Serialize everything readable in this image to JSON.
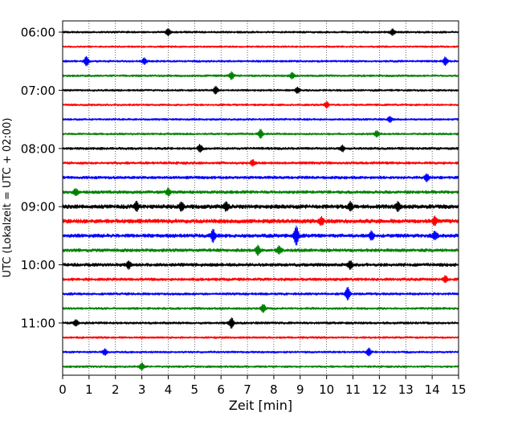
{
  "chart_data": {
    "type": "line",
    "title": "",
    "xlabel": "Zeit  [min]",
    "ylabel": "UTC (Lokalzeit = UTC + 02:00)",
    "xlim": [
      0,
      15
    ],
    "x_ticks": [
      "0",
      "1",
      "2",
      "3",
      "4",
      "5",
      "6",
      "7",
      "8",
      "9",
      "10",
      "11",
      "12",
      "13",
      "14",
      "15"
    ],
    "y_ticks": [
      "06:00",
      "07:00",
      "08:00",
      "09:00",
      "10:00",
      "11:00"
    ],
    "grid": "vertical dotted at every minute",
    "row_colors": [
      "#000000",
      "#ff0000",
      "#0000ff",
      "#008000"
    ],
    "series": [
      {
        "start": "06:00",
        "amplitude": 1.0,
        "events": [
          {
            "x": 4.0,
            "a": 1.2
          },
          {
            "x": 12.5,
            "a": 1.0
          }
        ]
      },
      {
        "start": "06:15",
        "amplitude": 0.9,
        "events": []
      },
      {
        "start": "06:30",
        "amplitude": 1.0,
        "events": [
          {
            "x": 0.9,
            "a": 1.6
          },
          {
            "x": 3.1,
            "a": 1.0
          },
          {
            "x": 14.5,
            "a": 1.4
          }
        ]
      },
      {
        "start": "06:45",
        "amplitude": 1.0,
        "events": [
          {
            "x": 6.4,
            "a": 1.3
          },
          {
            "x": 8.7,
            "a": 1.0
          }
        ]
      },
      {
        "start": "07:00",
        "amplitude": 1.0,
        "events": [
          {
            "x": 5.8,
            "a": 1.3
          },
          {
            "x": 8.9,
            "a": 1.0
          }
        ]
      },
      {
        "start": "07:15",
        "amplitude": 1.0,
        "events": [
          {
            "x": 10.0,
            "a": 1.0
          }
        ]
      },
      {
        "start": "07:30",
        "amplitude": 1.0,
        "events": [
          {
            "x": 12.4,
            "a": 1.0
          }
        ]
      },
      {
        "start": "07:45",
        "amplitude": 1.0,
        "events": [
          {
            "x": 7.5,
            "a": 1.5
          },
          {
            "x": 11.9,
            "a": 1.0
          }
        ]
      },
      {
        "start": "08:00",
        "amplitude": 1.2,
        "events": [
          {
            "x": 5.2,
            "a": 1.2
          },
          {
            "x": 10.6,
            "a": 1.0
          }
        ]
      },
      {
        "start": "08:15",
        "amplitude": 1.3,
        "events": [
          {
            "x": 7.2,
            "a": 1.0
          }
        ]
      },
      {
        "start": "08:30",
        "amplitude": 1.4,
        "events": [
          {
            "x": 13.8,
            "a": 1.2
          }
        ]
      },
      {
        "start": "08:45",
        "amplitude": 1.5,
        "events": [
          {
            "x": 0.5,
            "a": 1.2
          },
          {
            "x": 4.0,
            "a": 1.2
          }
        ]
      },
      {
        "start": "09:00",
        "amplitude": 2.0,
        "events": [
          {
            "x": 2.8,
            "a": 1.5
          },
          {
            "x": 4.5,
            "a": 1.5
          },
          {
            "x": 6.2,
            "a": 1.4
          },
          {
            "x": 10.9,
            "a": 1.5
          },
          {
            "x": 12.7,
            "a": 1.4
          }
        ]
      },
      {
        "start": "09:15",
        "amplitude": 2.0,
        "events": [
          {
            "x": 14.1,
            "a": 1.4
          },
          {
            "x": 9.8,
            "a": 1.2
          }
        ]
      },
      {
        "start": "09:30",
        "amplitude": 1.8,
        "events": [
          {
            "x": 5.7,
            "a": 2.0
          },
          {
            "x": 8.85,
            "a": 3.4
          },
          {
            "x": 11.7,
            "a": 1.4
          },
          {
            "x": 14.1,
            "a": 1.4
          }
        ]
      },
      {
        "start": "09:45",
        "amplitude": 1.6,
        "events": [
          {
            "x": 7.4,
            "a": 1.6
          },
          {
            "x": 8.2,
            "a": 1.2
          }
        ]
      },
      {
        "start": "10:00",
        "amplitude": 1.6,
        "events": [
          {
            "x": 2.5,
            "a": 1.3
          },
          {
            "x": 10.9,
            "a": 1.3
          }
        ]
      },
      {
        "start": "10:15",
        "amplitude": 1.4,
        "events": [
          {
            "x": 14.5,
            "a": 1.0
          }
        ]
      },
      {
        "start": "10:30",
        "amplitude": 1.2,
        "events": [
          {
            "x": 10.8,
            "a": 2.2
          }
        ]
      },
      {
        "start": "10:45",
        "amplitude": 1.1,
        "events": [
          {
            "x": 7.6,
            "a": 1.4
          }
        ]
      },
      {
        "start": "11:00",
        "amplitude": 1.2,
        "events": [
          {
            "x": 6.4,
            "a": 1.8
          },
          {
            "x": 0.5,
            "a": 1.0
          }
        ]
      },
      {
        "start": "11:15",
        "amplitude": 1.0,
        "events": []
      },
      {
        "start": "11:30",
        "amplitude": 1.0,
        "events": [
          {
            "x": 11.6,
            "a": 1.3
          },
          {
            "x": 1.6,
            "a": 1.0
          }
        ]
      },
      {
        "start": "11:45",
        "amplitude": 1.0,
        "events": [
          {
            "x": 3.0,
            "a": 1.2
          }
        ]
      }
    ]
  }
}
